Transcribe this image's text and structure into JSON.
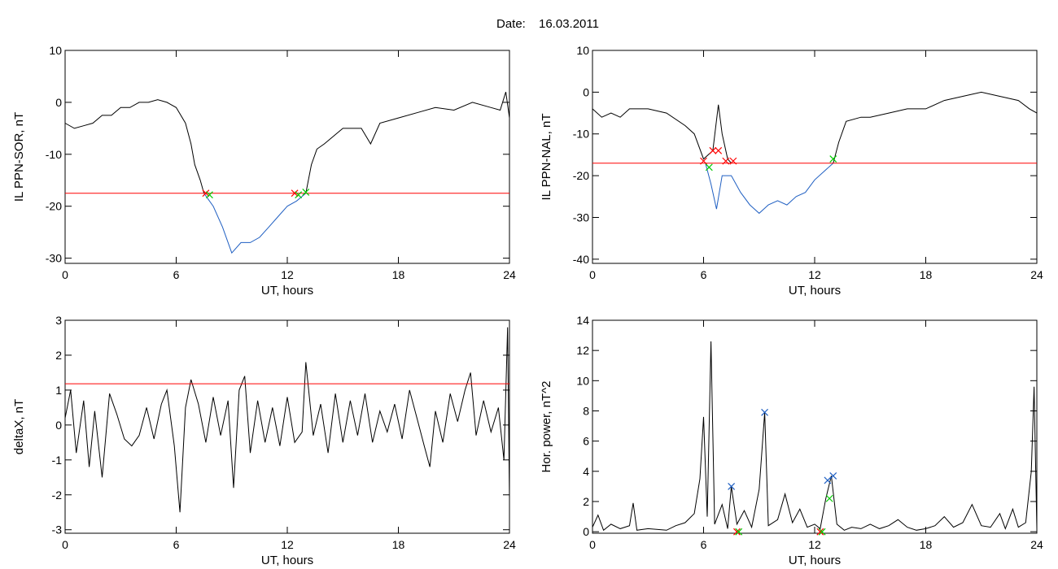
{
  "figure": {
    "date_label": "Date:",
    "date_value": "16.03.2011"
  },
  "chart_data": [
    {
      "type": "line",
      "ylabel": "IL PPN-SOR, nT",
      "xlabel": "UT, hours",
      "xlim": [
        0,
        24
      ],
      "ylim": [
        -31,
        10
      ],
      "xticks": [
        "0",
        "6",
        "12",
        "18",
        "24"
      ],
      "yticks": [
        10,
        0,
        -10,
        -20,
        -30
      ],
      "threshold": {
        "value": -17.5,
        "color": "#ff0000"
      },
      "series": [
        {
          "color": "#000000",
          "values": [
            [
              0,
              -4
            ],
            [
              0.5,
              -5
            ],
            [
              1,
              -4.5
            ],
            [
              1.5,
              -4
            ],
            [
              2,
              -2.5
            ],
            [
              2.5,
              -2.5
            ],
            [
              3,
              -1
            ],
            [
              3.5,
              -1
            ],
            [
              4,
              0
            ],
            [
              4.5,
              0
            ],
            [
              5,
              0.5
            ],
            [
              5.5,
              0
            ],
            [
              6,
              -1
            ],
            [
              6.5,
              -4
            ],
            [
              6.8,
              -8
            ],
            [
              7,
              -12
            ],
            [
              7.3,
              -15
            ],
            [
              7.5,
              -17.5
            ]
          ]
        },
        {
          "color": "#1f5fc2",
          "values": [
            [
              7.5,
              -17.5
            ],
            [
              8,
              -20
            ],
            [
              8.5,
              -24
            ],
            [
              9,
              -29
            ],
            [
              9.5,
              -27
            ],
            [
              10,
              -27
            ],
            [
              10.5,
              -26
            ],
            [
              11,
              -24
            ],
            [
              11.5,
              -22
            ],
            [
              12,
              -20
            ],
            [
              12.5,
              -19
            ],
            [
              13,
              -17.5
            ]
          ]
        },
        {
          "color": "#000000",
          "values": [
            [
              13,
              -17.5
            ],
            [
              13.3,
              -12
            ],
            [
              13.6,
              -9
            ],
            [
              14,
              -8
            ],
            [
              15,
              -5
            ],
            [
              16,
              -5
            ],
            [
              16.5,
              -8
            ],
            [
              17,
              -4
            ],
            [
              18,
              -3
            ],
            [
              19,
              -2
            ],
            [
              20,
              -1
            ],
            [
              21,
              -1.5
            ],
            [
              22,
              0
            ],
            [
              23,
              -1
            ],
            [
              23.5,
              -1.5
            ],
            [
              23.8,
              2
            ],
            [
              24,
              -3
            ]
          ]
        }
      ],
      "markers": [
        {
          "x": 7.6,
          "y": -17.5,
          "color": "#ff0000"
        },
        {
          "x": 7.8,
          "y": -17.8,
          "color": "#00cc00"
        },
        {
          "x": 12.4,
          "y": -17.5,
          "color": "#ff0000"
        },
        {
          "x": 12.6,
          "y": -17.8,
          "color": "#00cc00"
        },
        {
          "x": 13.0,
          "y": -17.3,
          "color": "#00cc00"
        }
      ]
    },
    {
      "type": "line",
      "ylabel": "IL PPN-NAL, nT",
      "xlabel": "UT, hours",
      "xlim": [
        0,
        24
      ],
      "ylim": [
        -41,
        10
      ],
      "xticks": [
        "0",
        "6",
        "12",
        "18",
        "24"
      ],
      "yticks": [
        10,
        0,
        -10,
        -20,
        -30,
        -40
      ],
      "threshold": {
        "value": -17,
        "color": "#ff0000"
      },
      "series": [
        {
          "color": "#000000",
          "values": [
            [
              0,
              -4
            ],
            [
              0.5,
              -6
            ],
            [
              1,
              -5
            ],
            [
              1.5,
              -6
            ],
            [
              2,
              -4
            ],
            [
              3,
              -4
            ],
            [
              4,
              -5
            ],
            [
              5,
              -8
            ],
            [
              5.5,
              -10
            ],
            [
              6,
              -16
            ],
            [
              6.5,
              -14
            ],
            [
              6.8,
              -3
            ],
            [
              7,
              -10
            ],
            [
              7.3,
              -16
            ],
            [
              7.5,
              -17
            ]
          ]
        },
        {
          "color": "#1f5fc2",
          "values": [
            [
              6.1,
              -17
            ],
            [
              6.4,
              -22
            ],
            [
              6.7,
              -28
            ],
            [
              7.0,
              -20
            ],
            [
              7.5,
              -20
            ],
            [
              8,
              -24
            ],
            [
              8.5,
              -27
            ],
            [
              9,
              -29
            ],
            [
              9.5,
              -27
            ],
            [
              10,
              -26
            ],
            [
              10.5,
              -27
            ],
            [
              11,
              -25
            ],
            [
              11.5,
              -24
            ],
            [
              12,
              -21
            ],
            [
              12.5,
              -19
            ],
            [
              13,
              -17
            ]
          ]
        },
        {
          "color": "#000000",
          "values": [
            [
              13,
              -17
            ],
            [
              13.3,
              -12
            ],
            [
              13.7,
              -7
            ],
            [
              14.5,
              -6
            ],
            [
              15,
              -6
            ],
            [
              16,
              -5
            ],
            [
              17,
              -4
            ],
            [
              18,
              -4
            ],
            [
              19,
              -2
            ],
            [
              20,
              -1
            ],
            [
              21,
              0
            ],
            [
              22,
              -1
            ],
            [
              23,
              -2
            ],
            [
              23.6,
              -4
            ],
            [
              24,
              -5
            ]
          ]
        }
      ],
      "markers": [
        {
          "x": 6.0,
          "y": -16.5,
          "color": "#ff0000"
        },
        {
          "x": 6.5,
          "y": -14,
          "color": "#ff0000"
        },
        {
          "x": 6.8,
          "y": -14,
          "color": "#ff0000"
        },
        {
          "x": 7.2,
          "y": -16.5,
          "color": "#ff0000"
        },
        {
          "x": 7.6,
          "y": -16.5,
          "color": "#ff0000"
        },
        {
          "x": 6.3,
          "y": -18,
          "color": "#00cc00"
        },
        {
          "x": 13.0,
          "y": -16,
          "color": "#00cc00"
        }
      ]
    },
    {
      "type": "line",
      "ylabel": "deltaX, nT",
      "xlabel": "UT, hours",
      "xlim": [
        0,
        24
      ],
      "ylim": [
        -3.1,
        3
      ],
      "xticks": [
        "0",
        "6",
        "12",
        "18",
        "24"
      ],
      "yticks": [
        3,
        2,
        1,
        0,
        -1,
        -2,
        -3
      ],
      "threshold": {
        "value": 1.18,
        "color": "#ff0000"
      },
      "series": [
        {
          "color": "#000000",
          "values": [
            [
              0,
              0.2
            ],
            [
              0.3,
              1
            ],
            [
              0.6,
              -0.8
            ],
            [
              1,
              0.7
            ],
            [
              1.3,
              -1.2
            ],
            [
              1.6,
              0.4
            ],
            [
              2,
              -1.5
            ],
            [
              2.4,
              0.9
            ],
            [
              2.8,
              0.3
            ],
            [
              3.2,
              -0.4
            ],
            [
              3.6,
              -0.6
            ],
            [
              4,
              -0.3
            ],
            [
              4.4,
              0.5
            ],
            [
              4.8,
              -0.4
            ],
            [
              5.2,
              0.6
            ],
            [
              5.5,
              1
            ],
            [
              5.9,
              -0.6
            ],
            [
              6.2,
              -2.5
            ],
            [
              6.5,
              0.5
            ],
            [
              6.8,
              1.3
            ],
            [
              7.2,
              0.6
            ],
            [
              7.6,
              -0.5
            ],
            [
              8,
              0.8
            ],
            [
              8.4,
              -0.3
            ],
            [
              8.8,
              0.7
            ],
            [
              9.1,
              -1.8
            ],
            [
              9.4,
              1.0
            ],
            [
              9.7,
              1.4
            ],
            [
              10,
              -0.8
            ],
            [
              10.4,
              0.7
            ],
            [
              10.8,
              -0.5
            ],
            [
              11.2,
              0.5
            ],
            [
              11.6,
              -0.6
            ],
            [
              12,
              0.8
            ],
            [
              12.4,
              -0.5
            ],
            [
              12.8,
              -0.2
            ],
            [
              13,
              1.8
            ],
            [
              13.4,
              -0.3
            ],
            [
              13.8,
              0.6
            ],
            [
              14.2,
              -0.8
            ],
            [
              14.6,
              0.9
            ],
            [
              15,
              -0.5
            ],
            [
              15.4,
              0.7
            ],
            [
              15.8,
              -0.3
            ],
            [
              16.2,
              0.9
            ],
            [
              16.6,
              -0.5
            ],
            [
              17,
              0.4
            ],
            [
              17.4,
              -0.2
            ],
            [
              17.8,
              0.6
            ],
            [
              18.2,
              -0.4
            ],
            [
              18.6,
              1.0
            ],
            [
              19,
              0.2
            ],
            [
              19.4,
              -0.6
            ],
            [
              19.7,
              -1.2
            ],
            [
              20,
              0.4
            ],
            [
              20.4,
              -0.5
            ],
            [
              20.8,
              0.9
            ],
            [
              21.2,
              0.1
            ],
            [
              21.6,
              1.0
            ],
            [
              21.9,
              1.5
            ],
            [
              22.2,
              -0.3
            ],
            [
              22.6,
              0.7
            ],
            [
              23,
              -0.2
            ],
            [
              23.4,
              0.5
            ],
            [
              23.7,
              -1.0
            ],
            [
              23.9,
              2.8
            ],
            [
              24,
              -2.1
            ]
          ]
        }
      ]
    },
    {
      "type": "line",
      "ylabel": "Hor. power, nT^2",
      "xlabel": "UT, hours",
      "xlim": [
        0,
        24
      ],
      "ylim": [
        -0.1,
        14
      ],
      "xticks": [
        "0",
        "6",
        "12",
        "18",
        "24"
      ],
      "yticks": [
        14,
        12,
        10,
        8,
        6,
        4,
        2,
        0
      ],
      "series": [
        {
          "color": "#000000",
          "values": [
            [
              0,
              0.3
            ],
            [
              0.3,
              1.1
            ],
            [
              0.6,
              0.1
            ],
            [
              1,
              0.5
            ],
            [
              1.5,
              0.2
            ],
            [
              2,
              0.4
            ],
            [
              2.2,
              1.9
            ],
            [
              2.4,
              0.1
            ],
            [
              3,
              0.2
            ],
            [
              4,
              0.1
            ],
            [
              4.5,
              0.4
            ],
            [
              5,
              0.6
            ],
            [
              5.5,
              1.2
            ],
            [
              5.8,
              3.5
            ],
            [
              6.0,
              7.6
            ],
            [
              6.2,
              1.0
            ],
            [
              6.4,
              12.6
            ],
            [
              6.6,
              0.5
            ],
            [
              7,
              1.8
            ],
            [
              7.3,
              0.2
            ],
            [
              7.5,
              3.0
            ],
            [
              7.8,
              0.5
            ],
            [
              8.2,
              1.4
            ],
            [
              8.6,
              0.3
            ],
            [
              9.0,
              2.8
            ],
            [
              9.3,
              7.9
            ],
            [
              9.5,
              0.4
            ],
            [
              10,
              0.8
            ],
            [
              10.4,
              2.5
            ],
            [
              10.8,
              0.6
            ],
            [
              11.2,
              1.5
            ],
            [
              11.6,
              0.3
            ],
            [
              12,
              0.5
            ],
            [
              12.3,
              0.2
            ],
            [
              12.6,
              2.2
            ],
            [
              12.9,
              3.7
            ],
            [
              13.2,
              0.5
            ],
            [
              13.6,
              0.1
            ],
            [
              14,
              0.3
            ],
            [
              14.5,
              0.2
            ],
            [
              15,
              0.5
            ],
            [
              15.5,
              0.2
            ],
            [
              16,
              0.4
            ],
            [
              16.5,
              0.8
            ],
            [
              17,
              0.3
            ],
            [
              17.5,
              0.1
            ],
            [
              18,
              0.2
            ],
            [
              18.5,
              0.4
            ],
            [
              19,
              1.0
            ],
            [
              19.5,
              0.3
            ],
            [
              20,
              0.6
            ],
            [
              20.5,
              1.8
            ],
            [
              21,
              0.4
            ],
            [
              21.5,
              0.3
            ],
            [
              22,
              1.2
            ],
            [
              22.3,
              0.2
            ],
            [
              22.7,
              1.5
            ],
            [
              23,
              0.3
            ],
            [
              23.4,
              0.6
            ],
            [
              23.7,
              4.0
            ],
            [
              23.85,
              9.6
            ],
            [
              24,
              0.2
            ]
          ]
        }
      ],
      "markers": [
        {
          "x": 7.5,
          "y": 3.0,
          "color": "#1f5fc2"
        },
        {
          "x": 9.3,
          "y": 7.9,
          "color": "#1f5fc2"
        },
        {
          "x": 12.7,
          "y": 3.4,
          "color": "#1f5fc2"
        },
        {
          "x": 13.0,
          "y": 3.7,
          "color": "#1f5fc2"
        },
        {
          "x": 7.8,
          "y": 0.0,
          "color": "#ff0000"
        },
        {
          "x": 12.3,
          "y": 0.0,
          "color": "#ff0000"
        },
        {
          "x": 7.9,
          "y": 0.0,
          "color": "#00cc00"
        },
        {
          "x": 12.4,
          "y": 0.0,
          "color": "#00cc00"
        },
        {
          "x": 12.8,
          "y": 2.2,
          "color": "#00cc00"
        }
      ]
    }
  ]
}
